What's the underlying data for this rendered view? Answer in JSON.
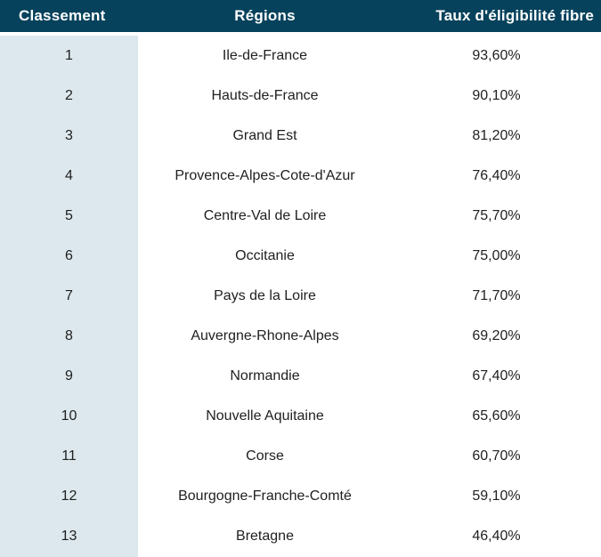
{
  "colors": {
    "header_bg": "#07425c",
    "header_text": "#ffffff",
    "rank_col_bg": "#dce8ed",
    "body_bg": "#ffffff",
    "body_text": "#1f1f1f"
  },
  "table": {
    "header": {
      "classement": "Classement",
      "regions": "Régions",
      "taux": "Taux d'éligibilité fibre"
    },
    "rows": [
      {
        "rank": "1",
        "region": "Ile-de-France",
        "rate": "93,60%"
      },
      {
        "rank": "2",
        "region": "Hauts-de-France",
        "rate": "90,10%"
      },
      {
        "rank": "3",
        "region": "Grand Est",
        "rate": "81,20%"
      },
      {
        "rank": "4",
        "region": "Provence-Alpes-Cote-d'Azur",
        "rate": "76,40%"
      },
      {
        "rank": "5",
        "region": "Centre-Val de Loire",
        "rate": "75,70%"
      },
      {
        "rank": "6",
        "region": "Occitanie",
        "rate": "75,00%"
      },
      {
        "rank": "7",
        "region": "Pays de la Loire",
        "rate": "71,70%"
      },
      {
        "rank": "8",
        "region": "Auvergne-Rhone-Alpes",
        "rate": "69,20%"
      },
      {
        "rank": "9",
        "region": "Normandie",
        "rate": "67,40%"
      },
      {
        "rank": "10",
        "region": "Nouvelle Aquitaine",
        "rate": "65,60%"
      },
      {
        "rank": "11",
        "region": "Corse",
        "rate": "60,70%"
      },
      {
        "rank": "12",
        "region": "Bourgogne-Franche-Comté",
        "rate": "59,10%"
      },
      {
        "rank": "13",
        "region": "Bretagne",
        "rate": "46,40%"
      }
    ]
  },
  "chart_data": {
    "type": "table",
    "columns": [
      "Classement",
      "Régions",
      "Taux d'éligibilité fibre"
    ],
    "rows": [
      [
        1,
        "Ile-de-France",
        "93,60%"
      ],
      [
        2,
        "Hauts-de-France",
        "90,10%"
      ],
      [
        3,
        "Grand Est",
        "81,20%"
      ],
      [
        4,
        "Provence-Alpes-Cote-d'Azur",
        "76,40%"
      ],
      [
        5,
        "Centre-Val de Loire",
        "75,70%"
      ],
      [
        6,
        "Occitanie",
        "75,00%"
      ],
      [
        7,
        "Pays de la Loire",
        "71,70%"
      ],
      [
        8,
        "Auvergne-Rhone-Alpes",
        "69,20%"
      ],
      [
        9,
        "Normandie",
        "67,40%"
      ],
      [
        10,
        "Nouvelle Aquitaine",
        "65,60%"
      ],
      [
        11,
        "Corse",
        "60,70%"
      ],
      [
        12,
        "Bourgogne-Franche-Comté",
        "59,10%"
      ],
      [
        13,
        "Bretagne",
        "46,40%"
      ]
    ],
    "values_numeric": [
      93.6,
      90.1,
      81.2,
      76.4,
      75.7,
      75.0,
      71.7,
      69.2,
      67.4,
      65.6,
      60.7,
      59.1,
      46.4
    ],
    "unit": "%"
  }
}
